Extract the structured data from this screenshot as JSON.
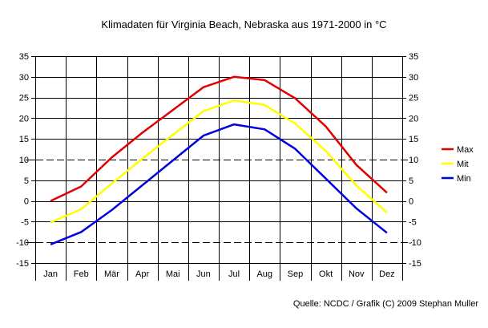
{
  "chart_data": {
    "type": "line",
    "title": "Klimadaten für Virginia Beach, Nebraska aus 1971-2000 in °C",
    "source": "Quelle: NCDC / Grafik (C) 2009 Stephan Muller",
    "categories": [
      "Jan",
      "Feb",
      "Mär",
      "Apr",
      "Mai",
      "Jun",
      "Jul",
      "Aug",
      "Sep",
      "Okt",
      "Nov",
      "Dez"
    ],
    "ylim": [
      -15,
      35
    ],
    "yticks": [
      35,
      30,
      25,
      20,
      15,
      10,
      5,
      0,
      -5,
      -10,
      -15
    ],
    "grid": true,
    "reference_lines": [
      10,
      -10
    ],
    "legend_position": "right",
    "series": [
      {
        "name": "Max",
        "color": "#e00000",
        "values": [
          0,
          3.5,
          10.5,
          16.5,
          22,
          27.5,
          30,
          29.2,
          24.8,
          18,
          8.7,
          2
        ]
      },
      {
        "name": "Mit",
        "color": "#ffff00",
        "values": [
          -5.2,
          -2,
          4.2,
          10.2,
          16,
          21.7,
          24.3,
          23.2,
          18.7,
          12.1,
          3.7,
          -2.8
        ]
      },
      {
        "name": "Min",
        "color": "#0000e0",
        "values": [
          -10.5,
          -7.5,
          -2.2,
          3.8,
          9.8,
          15.8,
          18.5,
          17.3,
          12.6,
          5.4,
          -1.8,
          -7.7
        ]
      }
    ]
  }
}
